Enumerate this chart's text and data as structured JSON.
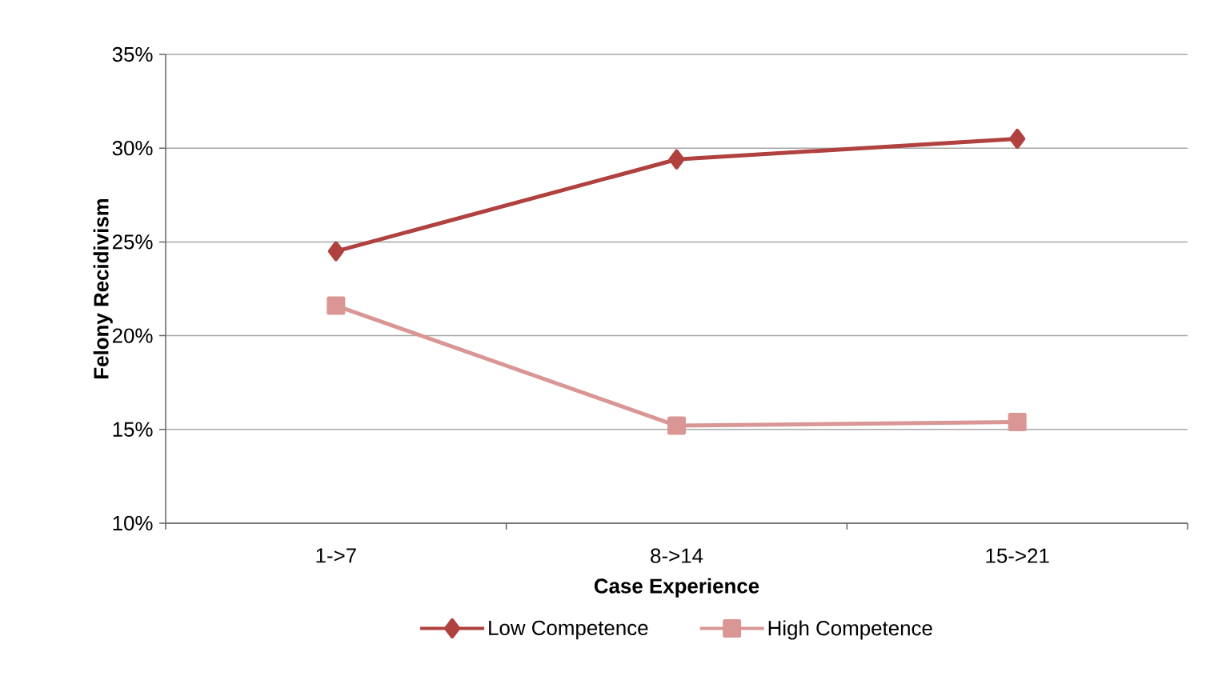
{
  "chart_data": {
    "type": "line",
    "xlabel": "Case Experience",
    "ylabel": "Felony Recidivism",
    "categories": [
      "1->7",
      "8->14",
      "15->21"
    ],
    "series": [
      {
        "name": "Low Competence",
        "color": "#b0413e",
        "marker": "diamond",
        "values": [
          24.5,
          29.4,
          30.5
        ]
      },
      {
        "name": "High Competence",
        "color": "#d99694",
        "marker": "square",
        "values": [
          21.6,
          15.2,
          15.4
        ]
      }
    ],
    "ylim": [
      10,
      35
    ],
    "yticks": [
      {
        "value": 10,
        "label": "10%"
      },
      {
        "value": 15,
        "label": "15%"
      },
      {
        "value": 20,
        "label": "20%"
      },
      {
        "value": 25,
        "label": "25%"
      },
      {
        "value": 30,
        "label": "30%"
      },
      {
        "value": 35,
        "label": "35%"
      }
    ],
    "grid": "y",
    "legend": "bottom",
    "line_style": "solid"
  }
}
